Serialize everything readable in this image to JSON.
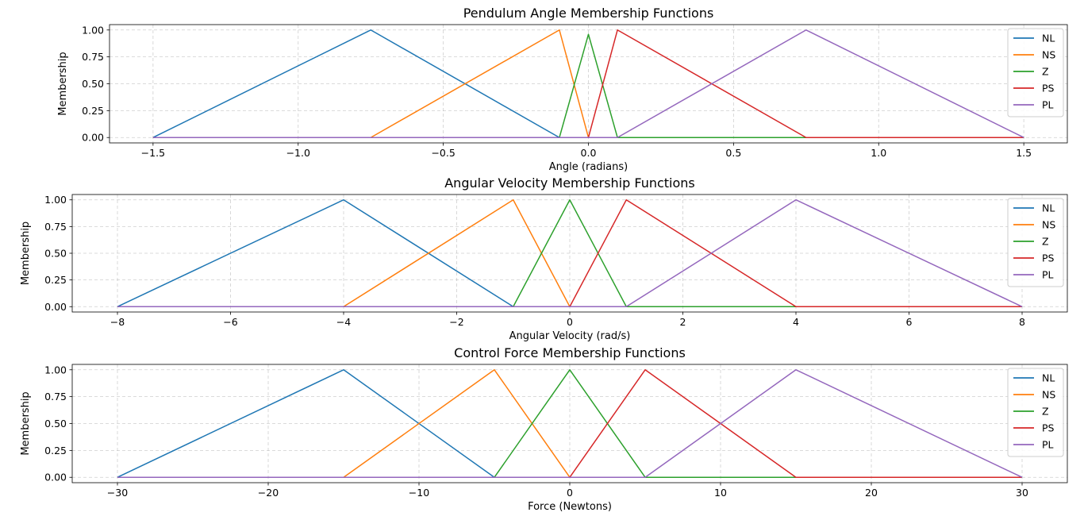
{
  "chart_data": [
    {
      "type": "line",
      "title": "Pendulum Angle Membership Functions",
      "xlabel": "Angle (radians)",
      "ylabel": "Membership",
      "xlim": [
        -1.65,
        1.65
      ],
      "ylim": [
        -0.05,
        1.05
      ],
      "xticks": [
        -1.5,
        -1.0,
        -0.5,
        0.0,
        0.5,
        1.0,
        1.5
      ],
      "xtick_labels": [
        "−1.5",
        "−1.0",
        "−0.5",
        "0.0",
        "0.5",
        "1.0",
        "1.5"
      ],
      "yticks": [
        0,
        0.25,
        0.5,
        0.75,
        1.0
      ],
      "ytick_labels": [
        "0.00",
        "0.25",
        "0.50",
        "0.75",
        "1.00"
      ],
      "grid": true,
      "legend_position": "top-right",
      "series": [
        {
          "name": "NL",
          "color": "#1f77b4",
          "points": [
            [
              -1.5,
              0
            ],
            [
              -0.75,
              1
            ],
            [
              -0.1,
              0
            ],
            [
              1.5,
              0
            ]
          ]
        },
        {
          "name": "NS",
          "color": "#ff7f0e",
          "points": [
            [
              -1.5,
              0
            ],
            [
              -0.75,
              0
            ],
            [
              -0.1,
              1
            ],
            [
              0,
              0
            ],
            [
              1.5,
              0
            ]
          ]
        },
        {
          "name": "Z",
          "color": "#2ca02c",
          "points": [
            [
              -1.5,
              0
            ],
            [
              -0.1,
              0
            ],
            [
              0,
              0.96
            ],
            [
              0.1,
              0
            ],
            [
              1.5,
              0
            ]
          ]
        },
        {
          "name": "PS",
          "color": "#d62728",
          "points": [
            [
              -1.5,
              0
            ],
            [
              0,
              0
            ],
            [
              0.1,
              1
            ],
            [
              0.75,
              0
            ],
            [
              1.5,
              0
            ]
          ]
        },
        {
          "name": "PL",
          "color": "#9467bd",
          "points": [
            [
              -1.5,
              0
            ],
            [
              0.1,
              0
            ],
            [
              0.75,
              1
            ],
            [
              1.5,
              0
            ]
          ]
        }
      ]
    },
    {
      "type": "line",
      "title": "Angular Velocity Membership Functions",
      "xlabel": "Angular Velocity (rad/s)",
      "ylabel": "Membership",
      "xlim": [
        -8.8,
        8.8
      ],
      "ylim": [
        -0.05,
        1.05
      ],
      "xticks": [
        -8,
        -6,
        -4,
        -2,
        0,
        2,
        4,
        6,
        8
      ],
      "xtick_labels": [
        "−8",
        "−6",
        "−4",
        "−2",
        "0",
        "2",
        "4",
        "6",
        "8"
      ],
      "yticks": [
        0,
        0.25,
        0.5,
        0.75,
        1.0
      ],
      "ytick_labels": [
        "0.00",
        "0.25",
        "0.50",
        "0.75",
        "1.00"
      ],
      "grid": true,
      "legend_position": "top-right",
      "series": [
        {
          "name": "NL",
          "color": "#1f77b4",
          "points": [
            [
              -8,
              0
            ],
            [
              -4,
              1
            ],
            [
              -1,
              0
            ],
            [
              8,
              0
            ]
          ]
        },
        {
          "name": "NS",
          "color": "#ff7f0e",
          "points": [
            [
              -8,
              0
            ],
            [
              -4,
              0
            ],
            [
              -1,
              1
            ],
            [
              0,
              0
            ],
            [
              8,
              0
            ]
          ]
        },
        {
          "name": "Z",
          "color": "#2ca02c",
          "points": [
            [
              -8,
              0
            ],
            [
              -1,
              0
            ],
            [
              0,
              1
            ],
            [
              1,
              0
            ],
            [
              8,
              0
            ]
          ]
        },
        {
          "name": "PS",
          "color": "#d62728",
          "points": [
            [
              -8,
              0
            ],
            [
              0,
              0
            ],
            [
              1,
              1
            ],
            [
              4,
              0
            ],
            [
              8,
              0
            ]
          ]
        },
        {
          "name": "PL",
          "color": "#9467bd",
          "points": [
            [
              -8,
              0
            ],
            [
              1,
              0
            ],
            [
              4,
              1
            ],
            [
              8,
              0
            ]
          ]
        }
      ]
    },
    {
      "type": "line",
      "title": "Control Force Membership Functions",
      "xlabel": "Force (Newtons)",
      "ylabel": "Membership",
      "xlim": [
        -33,
        33
      ],
      "ylim": [
        -0.05,
        1.05
      ],
      "xticks": [
        -30,
        -20,
        -10,
        0,
        10,
        20,
        30
      ],
      "xtick_labels": [
        "−30",
        "−20",
        "−10",
        "0",
        "10",
        "20",
        "30"
      ],
      "yticks": [
        0,
        0.25,
        0.5,
        0.75,
        1.0
      ],
      "ytick_labels": [
        "0.00",
        "0.25",
        "0.50",
        "0.75",
        "1.00"
      ],
      "grid": true,
      "legend_position": "top-right",
      "series": [
        {
          "name": "NL",
          "color": "#1f77b4",
          "points": [
            [
              -30,
              0
            ],
            [
              -15,
              1
            ],
            [
              -5,
              0
            ],
            [
              30,
              0
            ]
          ]
        },
        {
          "name": "NS",
          "color": "#ff7f0e",
          "points": [
            [
              -30,
              0
            ],
            [
              -15,
              0
            ],
            [
              -5,
              1
            ],
            [
              0,
              0
            ],
            [
              30,
              0
            ]
          ]
        },
        {
          "name": "Z",
          "color": "#2ca02c",
          "points": [
            [
              -30,
              0
            ],
            [
              -5,
              0
            ],
            [
              0,
              1
            ],
            [
              5,
              0
            ],
            [
              30,
              0
            ]
          ]
        },
        {
          "name": "PS",
          "color": "#d62728",
          "points": [
            [
              -30,
              0
            ],
            [
              0,
              0
            ],
            [
              5,
              1
            ],
            [
              15,
              0
            ],
            [
              30,
              0
            ]
          ]
        },
        {
          "name": "PL",
          "color": "#9467bd",
          "points": [
            [
              -30,
              0
            ],
            [
              5,
              0
            ],
            [
              15,
              1
            ],
            [
              30,
              0
            ]
          ]
        }
      ]
    }
  ]
}
